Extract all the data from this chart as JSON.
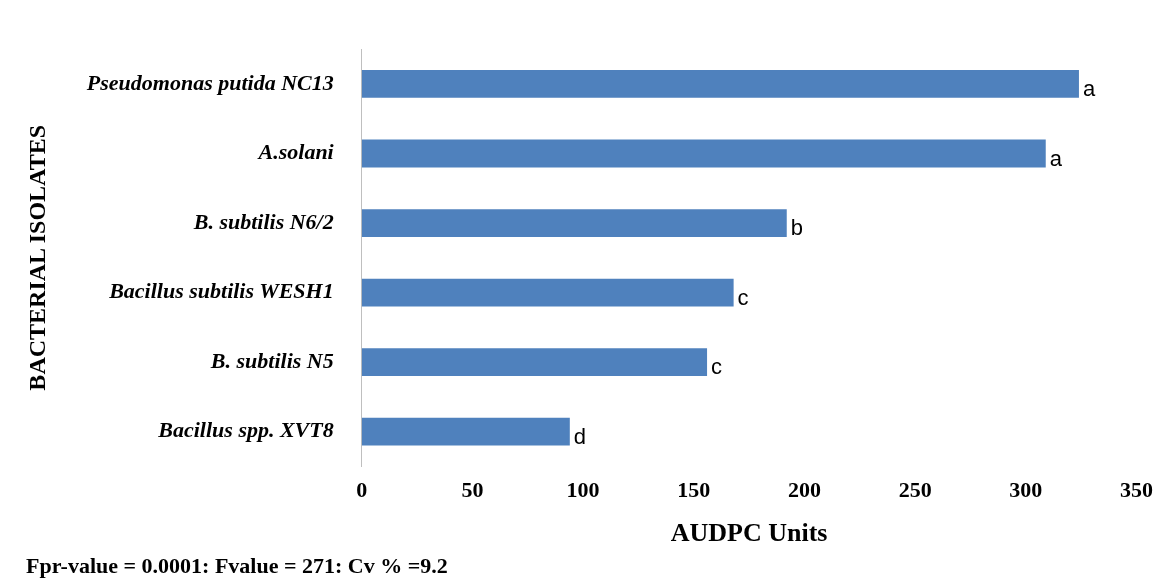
{
  "chart_data": {
    "type": "bar",
    "orientation": "horizontal",
    "xlabel": "AUDPC Units",
    "ylabel": "BACTERIAL ISOLATES",
    "categories": [
      "Pseudomonas putida NC13",
      "A.solani",
      "B. subtilis N6/2",
      "Bacillus subtilis WESH1",
      "B. subtilis N5",
      "Bacillus spp. XVT8"
    ],
    "values": [
      324,
      309,
      192,
      168,
      156,
      94
    ],
    "value_labels": [
      "a",
      "a",
      "b",
      "c",
      "c",
      "d"
    ],
    "color": "#4f81bd",
    "xlim": [
      0,
      350
    ],
    "xticks": [
      0,
      50,
      100,
      150,
      200,
      250,
      300,
      350
    ],
    "grid": false,
    "legend": false,
    "annotations": [
      "Fpr-value = 0.0001: Fvalue = 271: Cv % =9.2"
    ]
  }
}
